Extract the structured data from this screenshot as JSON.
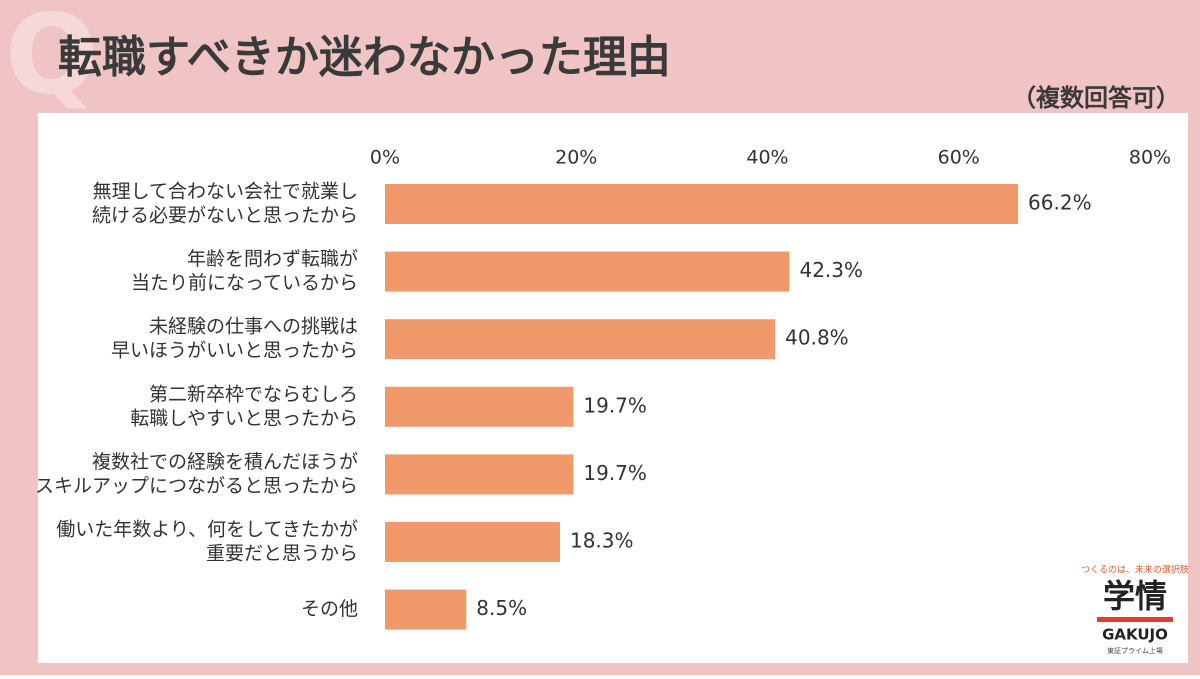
{
  "chart_data": {
    "type": "bar",
    "orientation": "horizontal",
    "title": "転職すべきか迷わなかった理由",
    "subtitle": "（複数回答可）",
    "categories": [
      [
        "無理して合わない会社で就業し",
        "続ける必要がないと思ったから"
      ],
      [
        "年齢を問わず転職が",
        "当たり前になっているから"
      ],
      [
        "未経験の仕事への挑戦は",
        "早いほうがいいと思ったから"
      ],
      [
        "第二新卒枠でならむしろ",
        "転職しやすいと思ったから"
      ],
      [
        "複数社での経験を積んだほうが",
        "スキルアップにつながると思ったから"
      ],
      [
        "働いた年数より、何をしてきたかが",
        "重要だと思うから"
      ],
      [
        "その他"
      ]
    ],
    "values": [
      66.2,
      42.3,
      40.8,
      19.7,
      19.7,
      18.3,
      8.5
    ],
    "value_labels": [
      "66.2%",
      "42.3%",
      "40.8%",
      "19.7%",
      "19.7%",
      "18.3%",
      "8.5%"
    ],
    "color": "#f09a6c",
    "xlim": [
      0,
      80
    ],
    "xticks": [
      {
        "value": 0,
        "label": "0%"
      },
      {
        "value": 20,
        "label": "20%"
      },
      {
        "value": 40,
        "label": "40%"
      },
      {
        "value": 60,
        "label": "60%"
      },
      {
        "value": 80,
        "label": "80%"
      }
    ]
  },
  "logo": {
    "tagline": "つくるのは、未来の選択肢",
    "name": "学情",
    "latin": "GAKUJO",
    "note": "東証プライム上場"
  }
}
